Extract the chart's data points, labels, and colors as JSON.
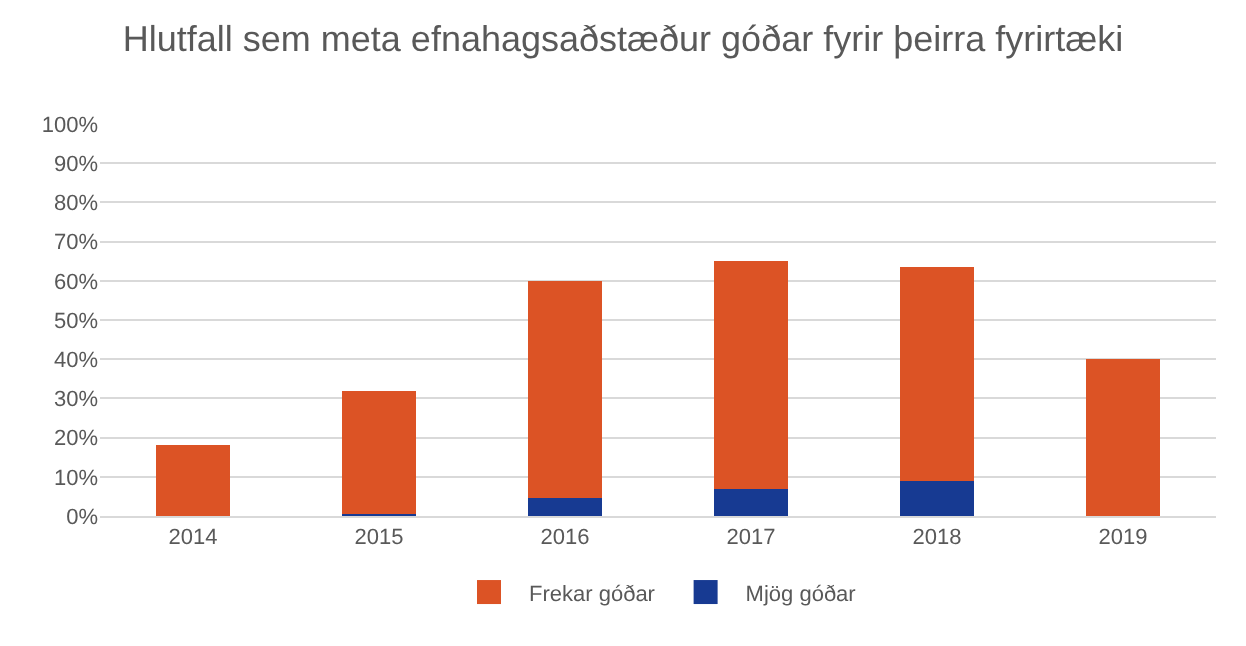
{
  "chart_data": {
    "type": "bar",
    "title": "Hlutfall sem meta efnahagsaðstæður góðar fyrir þeirra fyrirtæki",
    "categories": [
      "2014",
      "2015",
      "2016",
      "2017",
      "2018",
      "2019"
    ],
    "stacked": true,
    "series": [
      {
        "name": "Mjög góðar",
        "color": "#173a92",
        "values": [
          0,
          0.5,
          4.5,
          7,
          9,
          0
        ]
      },
      {
        "name": "Frekar góðar",
        "color": "#dc5325",
        "values": [
          18,
          31.5,
          55.5,
          58,
          54.5,
          40
        ]
      }
    ],
    "ylim": [
      0,
      100
    ],
    "yticks": [
      {
        "value": 0,
        "label": "0%"
      },
      {
        "value": 10,
        "label": "10%"
      },
      {
        "value": 20,
        "label": "20%"
      },
      {
        "value": 30,
        "label": "30%"
      },
      {
        "value": 40,
        "label": "40%"
      },
      {
        "value": 50,
        "label": "50%"
      },
      {
        "value": 60,
        "label": "60%"
      },
      {
        "value": 70,
        "label": "70%"
      },
      {
        "value": 80,
        "label": "80%"
      },
      {
        "value": 90,
        "label": "90%"
      },
      {
        "value": 100,
        "label": "100%"
      }
    ],
    "grid": "y",
    "legend": "bottom"
  }
}
